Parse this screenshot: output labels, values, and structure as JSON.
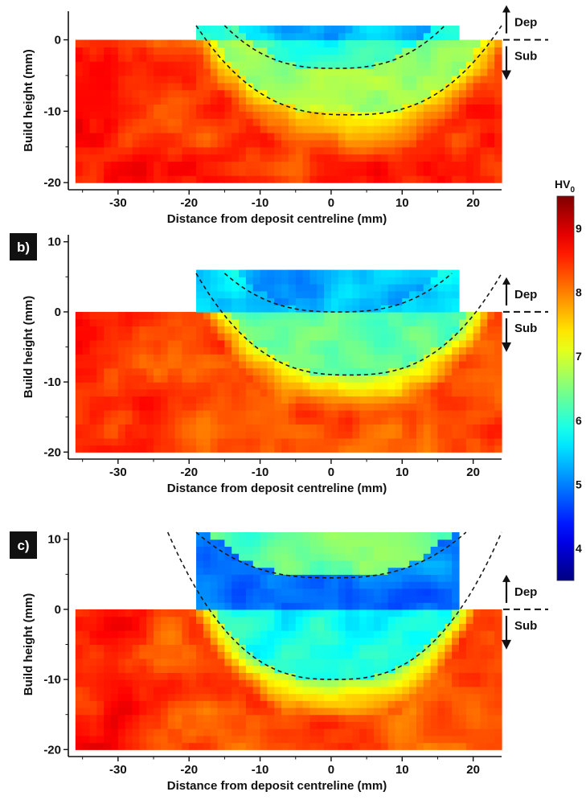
{
  "chart_data": {
    "type": "heatmap",
    "colormap": "jet",
    "colorbar": {
      "title": "HV",
      "title_subscript": "0",
      "tick_labels": [
        "9",
        "8",
        "7",
        "6",
        "5",
        "4"
      ]
    },
    "panels": [
      {
        "label": "",
        "xlabel": "Distance from deposit centreline (mm)",
        "ylabel": "Build height (mm)",
        "xlim": [
          -37,
          24
        ],
        "ylim": [
          -21,
          4
        ],
        "xticks": [
          "-30",
          "-20",
          "-10",
          "0",
          "10",
          "20"
        ],
        "yticks": [
          "0",
          "-10",
          "-20"
        ],
        "yticks_values": [
          0,
          -10,
          -20
        ],
        "substrate_x": [
          -36,
          24
        ],
        "substrate_y": [
          -20,
          0
        ],
        "deposit_x": [
          -19,
          18
        ],
        "deposit_top": 2,
        "inner_boundary": {
          "x_edges": [
            -15,
            16
          ],
          "y_min": -4
        },
        "outer_boundary": {
          "x_edges": [
            -19,
            24
          ],
          "y_min": -10.5
        },
        "hardness_levels": {
          "deposit": 0.32,
          "inner": 0.42,
          "outer": 0.62,
          "substrate": 0.82
        },
        "dep_label": "Dep",
        "sub_label": "Sub"
      },
      {
        "label": "b)",
        "xlabel": "Distance from deposit centreline (mm)",
        "ylabel": "Build height (mm)",
        "xlim": [
          -37,
          24
        ],
        "ylim": [
          -21,
          11
        ],
        "xticks": [
          "-30",
          "-20",
          "-10",
          "0",
          "10",
          "20"
        ],
        "yticks": [
          "10",
          "0",
          "-10",
          "-20"
        ],
        "yticks_values": [
          10,
          0,
          -10,
          -20
        ],
        "substrate_x": [
          -36,
          24
        ],
        "substrate_y": [
          -20,
          0
        ],
        "deposit_x": [
          -19,
          18
        ],
        "deposit_top": 5.5,
        "inner_boundary": {
          "x_edges": [
            -15,
            17
          ],
          "y_min": 0
        },
        "outer_boundary": {
          "x_edges": [
            -19,
            24
          ],
          "y_min": -9
        },
        "hardness_levels": {
          "deposit": 0.3,
          "inner": 0.36,
          "outer": 0.55,
          "substrate": 0.8
        },
        "dep_label": "Dep",
        "sub_label": "Sub"
      },
      {
        "label": "c)",
        "xlabel": "Distance from deposit centreline (mm)",
        "ylabel": "Build height (mm)",
        "xlim": [
          -37,
          24
        ],
        "ylim": [
          -21,
          11
        ],
        "xticks": [
          "-30",
          "-20",
          "-10",
          "0",
          "10",
          "20"
        ],
        "yticks": [
          "10",
          "0",
          "-10",
          "-20"
        ],
        "yticks_values": [
          10,
          0,
          -10,
          -20
        ],
        "substrate_x": [
          -36,
          24
        ],
        "substrate_y": [
          -20,
          0
        ],
        "deposit_x": [
          -19,
          18
        ],
        "deposit_top": 11,
        "inner_boundary": {
          "x_edges": [
            -19,
            19
          ],
          "y_min": 4.5
        },
        "outer_boundary": {
          "x_edges": [
            -23,
            24
          ],
          "y_min": -10
        },
        "hardness_levels": {
          "deposit": 0.48,
          "inner": 0.24,
          "outer": 0.5,
          "substrate": 0.8
        },
        "dep_label": "Dep",
        "sub_label": "Sub"
      }
    ]
  }
}
